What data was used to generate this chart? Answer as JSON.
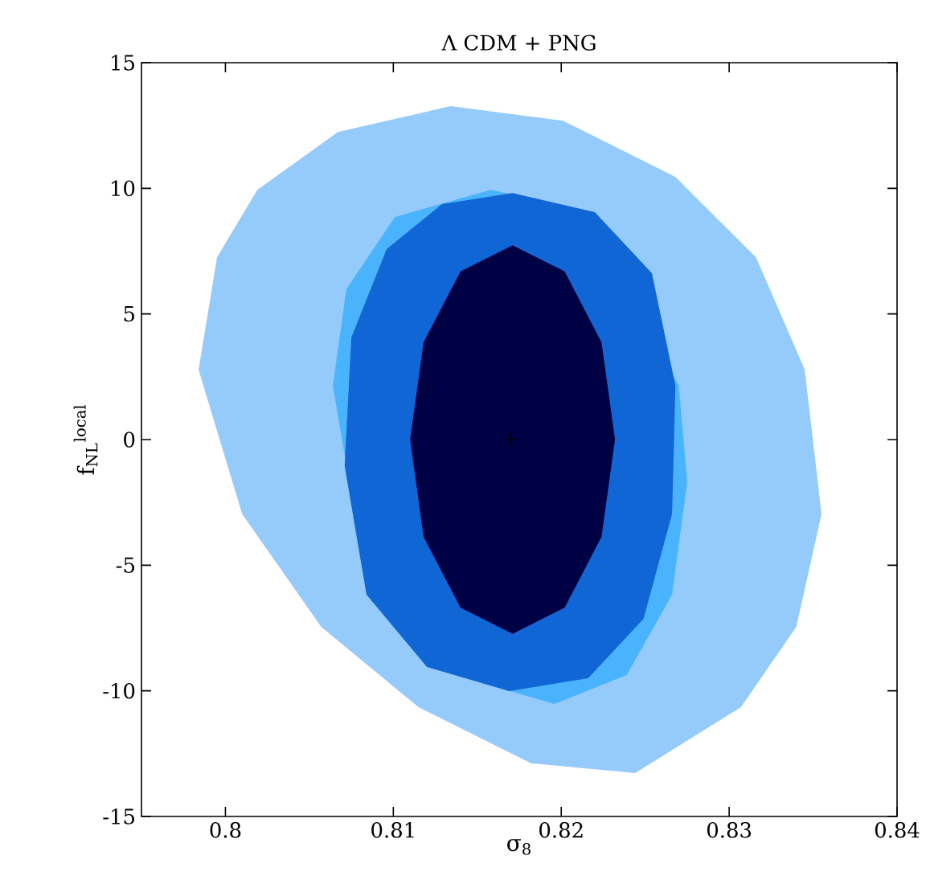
{
  "chart_data": {
    "type": "area",
    "title": "Λ CDM + PNG",
    "xlabel": "σ$_{8}$",
    "ylabel": "f$_{NL}$$^{local}$",
    "xlim": [
      0.795,
      0.84
    ],
    "ylim": [
      -15,
      15
    ],
    "xticks": [
      0.8,
      0.81,
      0.82,
      0.83,
      0.84
    ],
    "yticks": [
      -15,
      -10,
      -5,
      0,
      5,
      10,
      15
    ],
    "series": [
      {
        "color": "#94cbfb",
        "x": [
          0.8134,
          0.8201,
          0.8268,
          0.8316,
          0.8345,
          0.8355,
          0.834,
          0.8307,
          0.8244,
          0.8182,
          0.8115,
          0.8057,
          0.801,
          0.7984,
          0.7995,
          0.8019,
          0.8067
        ],
        "values": [
          13.27,
          12.69,
          10.45,
          7.25,
          2.78,
          -2.97,
          -7.45,
          -10.65,
          -13.27,
          -12.88,
          -10.65,
          -7.45,
          -2.97,
          2.78,
          7.25,
          9.94,
          12.24
        ]
      },
      {
        "color": "#4ab3fe",
        "x": [
          0.8158,
          0.8211,
          0.8249,
          0.827,
          0.8275,
          0.8266,
          0.8239,
          0.8196,
          0.8153,
          0.811,
          0.8077,
          0.8064,
          0.8072,
          0.8101
        ],
        "values": [
          9.94,
          9.18,
          null,
          2.14,
          -1.69,
          -6.17,
          -9.37,
          -10.52,
          -9.69,
          null,
          -2.97,
          2.14,
          5.98,
          8.86
        ]
      },
      {
        "color": "#1166d6",
        "x": [
          0.8171,
          0.822,
          0.8254,
          0.8268,
          0.8266,
          0.8249,
          0.8216,
          0.8169,
          0.812,
          0.8084,
          0.8071,
          0.8075,
          0.8096,
          0.8129
        ],
        "values": [
          9.81,
          9.05,
          6.62,
          2.14,
          -2.97,
          -7.13,
          -9.5,
          -10.01,
          -9.05,
          -6.17,
          -1.05,
          4.06,
          7.58,
          9.37
        ]
      },
      {
        "color": "#000044",
        "x": [
          0.8232,
          0.8224,
          0.8202,
          0.8171,
          0.814,
          0.8118,
          0.811,
          0.8118,
          0.814,
          0.8171,
          0.8202,
          0.8224
        ],
        "values": [
          0,
          3.87,
          6.69,
          7.73,
          6.69,
          3.87,
          0,
          -3.87,
          -6.69,
          -7.73,
          -6.69,
          -3.87
        ]
      },
      {
        "type": "scatter",
        "color": "#000000",
        "marker": "cross",
        "x": [
          0.817
        ],
        "values": [
          0
        ]
      }
    ]
  }
}
